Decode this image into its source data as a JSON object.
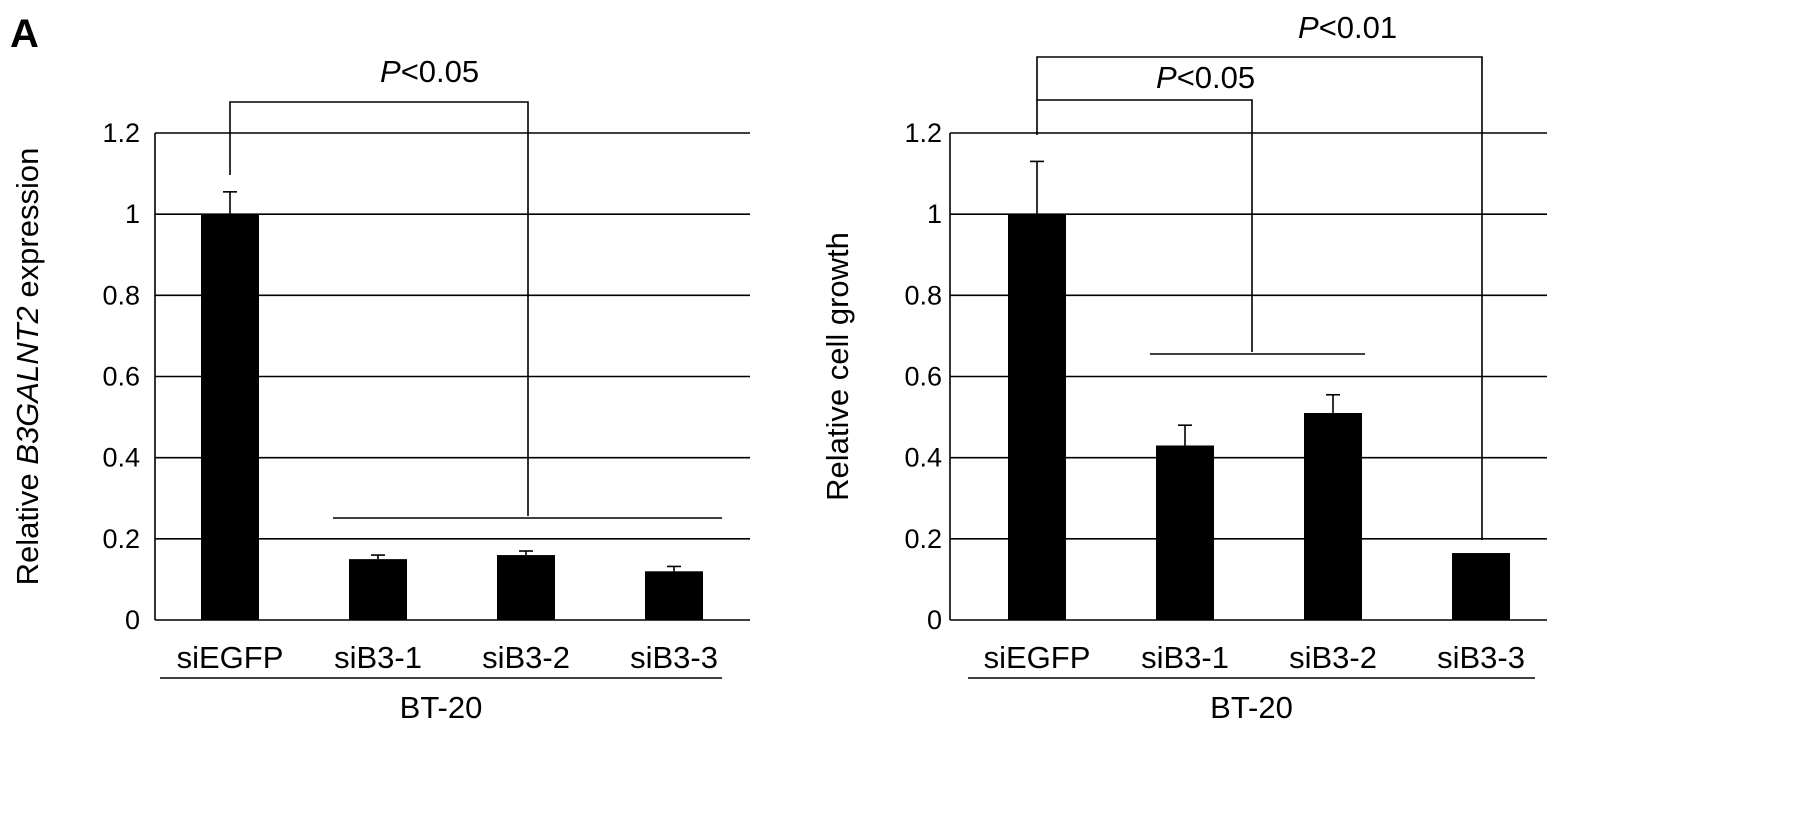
{
  "figure": {
    "panel_label": "A"
  },
  "chart_data": [
    {
      "type": "bar",
      "ylabel_prefix": "Relative ",
      "ylabel_italic": "B3GALNT2",
      "ylabel_suffix": " expression",
      "group_label": "BT-20",
      "categories": [
        "siEGFP",
        "siB3-1",
        "siB3-2",
        "siB3-3"
      ],
      "values": [
        1.0,
        0.15,
        0.16,
        0.12
      ],
      "errors": [
        0.055,
        0.01,
        0.01,
        0.012
      ],
      "ylim": [
        0,
        1.2
      ],
      "yticks": [
        "0",
        "0.2",
        "0.4",
        "0.6",
        "0.8",
        "1",
        "1.2"
      ],
      "grid": true,
      "significance": [
        {
          "p_italic": "P",
          "p_text": "<0.05",
          "from": [
            0
          ],
          "to": [
            1,
            2,
            3
          ]
        }
      ]
    },
    {
      "type": "bar",
      "ylabel_prefix": "Relative cell growth",
      "ylabel_italic": "",
      "ylabel_suffix": "",
      "group_label": "BT-20",
      "categories": [
        "siEGFP",
        "siB3-1",
        "siB3-2",
        "siB3-3"
      ],
      "values": [
        1.0,
        0.43,
        0.51,
        0.165
      ],
      "errors": [
        0.13,
        0.05,
        0.045,
        0.0
      ],
      "ylim": [
        0,
        1.2
      ],
      "yticks": [
        "0",
        "0.2",
        "0.4",
        "0.6",
        "0.8",
        "1",
        "1.2"
      ],
      "grid": true,
      "significance": [
        {
          "p_italic": "P",
          "p_text": "<0.05",
          "from": [
            0
          ],
          "to": [
            1,
            2
          ]
        },
        {
          "p_italic": "P",
          "p_text": "<0.01",
          "from": [
            0
          ],
          "to": [
            3
          ]
        }
      ]
    }
  ]
}
